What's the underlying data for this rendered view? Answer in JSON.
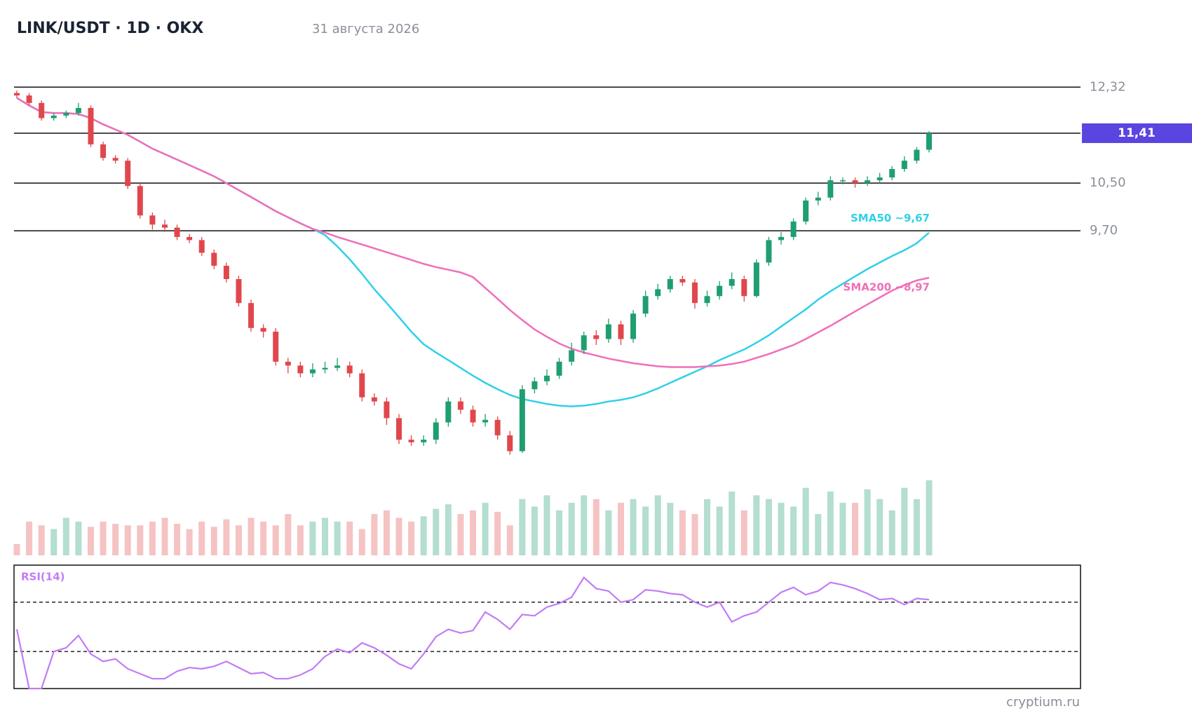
{
  "chart_data": {
    "type": "candlestick",
    "title": "LINK/USDT · 1D · OKX",
    "subtitle": "31 августа 2026",
    "footer": "cryptium.ru",
    "log_scale": true,
    "ylim": [
      6.5,
      12.6
    ],
    "yticks": [
      {
        "value": 12.32,
        "label": "12,32"
      },
      {
        "value": 10.5,
        "label": "10,50"
      },
      {
        "value": 9.7,
        "label": "9,70"
      }
    ],
    "last_price": {
      "value": 11.41,
      "label": "11,41"
    },
    "up_color": "#1f9e6f",
    "down_color": "#e0474c",
    "open": [
      12.2,
      12.15,
      12.0,
      11.7,
      11.75,
      11.8,
      11.9,
      11.2,
      10.95,
      10.9,
      10.45,
      9.95,
      9.8,
      9.75,
      9.6,
      9.55,
      9.35,
      9.15,
      8.95,
      8.6,
      8.25,
      8.2,
      7.8,
      7.75,
      7.65,
      7.7,
      7.72,
      7.75,
      7.65,
      7.35,
      7.3,
      7.1,
      6.85,
      6.82,
      6.85,
      7.05,
      7.3,
      7.2,
      7.05,
      7.08,
      6.9,
      6.72,
      7.45,
      7.55,
      7.62,
      7.8,
      7.95,
      8.15,
      8.1,
      8.3,
      8.1,
      8.45,
      8.7,
      8.8,
      8.95,
      8.9,
      8.6,
      8.7,
      8.85,
      8.95,
      8.7,
      9.2,
      9.55,
      9.6,
      9.85,
      10.2,
      10.25,
      10.55,
      10.55,
      10.5,
      10.55,
      10.6,
      10.75,
      10.9,
      11.1
    ],
    "high": [
      12.25,
      12.2,
      12.05,
      11.8,
      11.85,
      12.0,
      11.95,
      11.25,
      11.0,
      10.95,
      10.5,
      10.0,
      9.88,
      9.8,
      9.65,
      9.6,
      9.4,
      9.2,
      9.0,
      8.65,
      8.3,
      8.25,
      7.85,
      7.8,
      7.78,
      7.8,
      7.85,
      7.8,
      7.7,
      7.4,
      7.35,
      7.15,
      6.9,
      6.9,
      7.1,
      7.35,
      7.35,
      7.25,
      7.15,
      7.12,
      6.95,
      7.5,
      7.6,
      7.7,
      7.85,
      8.05,
      8.2,
      8.22,
      8.38,
      8.35,
      8.5,
      8.78,
      8.88,
      9.0,
      9.0,
      8.95,
      8.78,
      8.92,
      9.05,
      9.0,
      9.25,
      9.6,
      9.68,
      9.9,
      10.25,
      10.35,
      10.62,
      10.6,
      10.6,
      10.62,
      10.68,
      10.8,
      10.98,
      11.15,
      11.45
    ],
    "low": [
      12.1,
      11.95,
      11.65,
      11.65,
      11.7,
      11.75,
      11.15,
      10.9,
      10.85,
      10.4,
      9.9,
      9.72,
      9.68,
      9.55,
      9.5,
      9.3,
      9.1,
      8.9,
      8.55,
      8.2,
      8.12,
      7.75,
      7.65,
      7.6,
      7.6,
      7.65,
      7.68,
      7.6,
      7.3,
      7.25,
      7.02,
      6.8,
      6.78,
      6.78,
      6.8,
      7.0,
      7.15,
      7.0,
      7.0,
      6.85,
      6.68,
      6.7,
      7.4,
      7.5,
      7.58,
      7.75,
      7.9,
      8.02,
      8.05,
      8.02,
      8.05,
      8.4,
      8.65,
      8.75,
      8.85,
      8.52,
      8.55,
      8.65,
      8.8,
      8.62,
      8.68,
      9.15,
      9.48,
      9.55,
      9.8,
      10.12,
      10.2,
      10.48,
      10.42,
      10.45,
      10.5,
      10.55,
      10.7,
      10.85,
      11.05
    ],
    "close": [
      12.15,
      12.0,
      11.7,
      11.75,
      11.8,
      11.9,
      11.2,
      10.95,
      10.9,
      10.45,
      9.95,
      9.8,
      9.75,
      9.6,
      9.55,
      9.35,
      9.15,
      8.95,
      8.6,
      8.25,
      8.2,
      7.8,
      7.75,
      7.65,
      7.7,
      7.72,
      7.75,
      7.65,
      7.35,
      7.3,
      7.1,
      6.85,
      6.82,
      6.85,
      7.05,
      7.3,
      7.2,
      7.05,
      7.08,
      6.9,
      6.72,
      7.45,
      7.55,
      7.62,
      7.8,
      7.95,
      8.15,
      8.1,
      8.3,
      8.1,
      8.45,
      8.7,
      8.8,
      8.95,
      8.9,
      8.6,
      8.7,
      8.85,
      8.95,
      8.7,
      9.2,
      9.55,
      9.6,
      9.85,
      10.2,
      10.25,
      10.55,
      10.55,
      10.5,
      10.55,
      10.6,
      10.75,
      10.9,
      11.1,
      11.41
    ],
    "series": [
      {
        "name": "SMA50 ~9,67",
        "color": "#2fd0e8",
        "values": [
          12.1,
          11.95,
          11.82,
          11.8,
          11.8,
          11.78,
          11.7,
          11.58,
          11.48,
          11.38,
          11.25,
          11.12,
          11.02,
          10.92,
          10.82,
          10.72,
          10.62,
          10.5,
          10.38,
          10.26,
          10.14,
          10.02,
          9.92,
          9.82,
          9.73,
          9.63,
          9.45,
          9.25,
          9.03,
          8.8,
          8.6,
          8.4,
          8.2,
          8.03,
          7.92,
          7.82,
          7.72,
          7.62,
          7.53,
          7.45,
          7.38,
          7.33,
          7.3,
          7.27,
          7.25,
          7.24,
          7.25,
          7.27,
          7.3,
          7.32,
          7.35,
          7.4,
          7.46,
          7.53,
          7.6,
          7.67,
          7.74,
          7.82,
          7.89,
          7.96,
          8.05,
          8.15,
          8.27,
          8.39,
          8.51,
          8.65,
          8.77,
          8.88,
          8.99,
          9.1,
          9.2,
          9.3,
          9.39,
          9.5,
          9.67
        ]
      },
      {
        "name": "SMA200 ~8,97",
        "color": "#f06eb8",
        "values": [
          12.1,
          11.95,
          11.82,
          11.8,
          11.8,
          11.78,
          11.7,
          11.58,
          11.48,
          11.38,
          11.25,
          11.12,
          11.02,
          10.92,
          10.82,
          10.72,
          10.62,
          10.5,
          10.38,
          10.26,
          10.14,
          10.02,
          9.92,
          9.82,
          9.73,
          9.67,
          9.6,
          9.54,
          9.48,
          9.42,
          9.36,
          9.3,
          9.24,
          9.18,
          9.13,
          9.09,
          9.05,
          8.98,
          8.82,
          8.66,
          8.5,
          8.36,
          8.23,
          8.13,
          8.04,
          7.97,
          7.92,
          7.88,
          7.84,
          7.81,
          7.78,
          7.76,
          7.74,
          7.73,
          7.73,
          7.73,
          7.74,
          7.75,
          7.77,
          7.8,
          7.85,
          7.9,
          7.96,
          8.02,
          8.1,
          8.19,
          8.28,
          8.38,
          8.48,
          8.58,
          8.68,
          8.78,
          8.86,
          8.93,
          8.97
        ]
      }
    ],
    "volume": {
      "ylim": [
        0,
        100
      ],
      "up_color": "#b3ded0",
      "down_color": "#f5c3c3",
      "values": [
        15,
        45,
        40,
        35,
        50,
        45,
        38,
        45,
        42,
        40,
        40,
        45,
        50,
        42,
        35,
        45,
        38,
        48,
        40,
        50,
        45,
        40,
        55,
        40,
        45,
        50,
        45,
        45,
        35,
        55,
        60,
        50,
        45,
        52,
        62,
        68,
        55,
        60,
        70,
        58,
        40,
        75,
        65,
        80,
        60,
        70,
        80,
        75,
        60,
        70,
        75,
        65,
        80,
        70,
        60,
        55,
        75,
        65,
        85,
        60,
        80,
        75,
        70,
        65,
        90,
        55,
        85,
        70,
        70,
        88,
        75,
        60,
        90,
        75,
        100
      ]
    },
    "rsi": {
      "name": "RSI(14)",
      "color": "#c27cf5",
      "ylim": [
        0,
        100
      ],
      "levels": [
        70,
        30
      ],
      "values": [
        48,
        0,
        0,
        30,
        33,
        43,
        28,
        22,
        24,
        16,
        12,
        8,
        8,
        14,
        17,
        16,
        18,
        22,
        17,
        12,
        13,
        8,
        8,
        11,
        16,
        26,
        32,
        29,
        37,
        33,
        27,
        20,
        16,
        28,
        42,
        48,
        45,
        47,
        62,
        56,
        48,
        60,
        59,
        66,
        69,
        74,
        90,
        81,
        79,
        70,
        72,
        80,
        79,
        77,
        76,
        70,
        66,
        70,
        54,
        59,
        62,
        70,
        78,
        82,
        76,
        79,
        86,
        84,
        81,
        77,
        72,
        73,
        68,
        73,
        72
      ]
    }
  }
}
